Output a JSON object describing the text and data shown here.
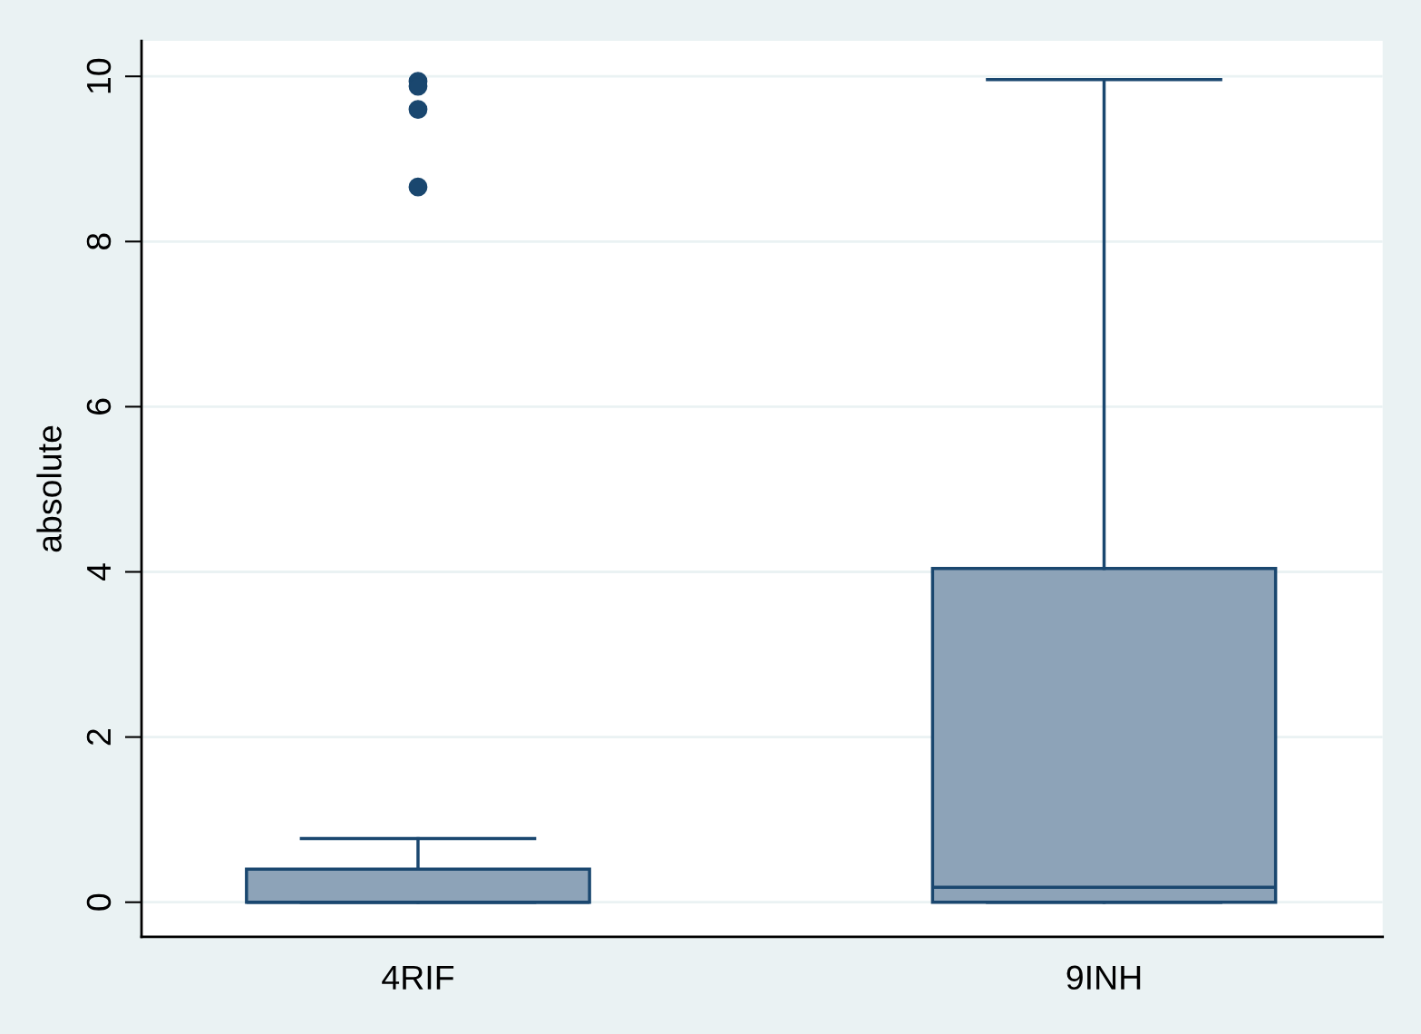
{
  "chart_data": {
    "type": "box",
    "categories": [
      "4RIF",
      "9INH"
    ],
    "ylabel": "absolute",
    "boxes": [
      {
        "low": 0,
        "q1": 0,
        "median": 0,
        "q3": 0.4,
        "high": 0.77,
        "outliers": [
          9.94,
          9.88,
          9.6,
          8.66
        ]
      },
      {
        "low": 0,
        "q1": 0,
        "median": 0.18,
        "q3": 4.04,
        "high": 9.96
      }
    ],
    "color": "#8da3b8",
    "marker": "circle",
    "ylim": [
      -0.42,
      10.43
    ],
    "yticks": [
      0,
      2,
      4,
      6,
      8,
      10
    ],
    "grid": "y"
  }
}
